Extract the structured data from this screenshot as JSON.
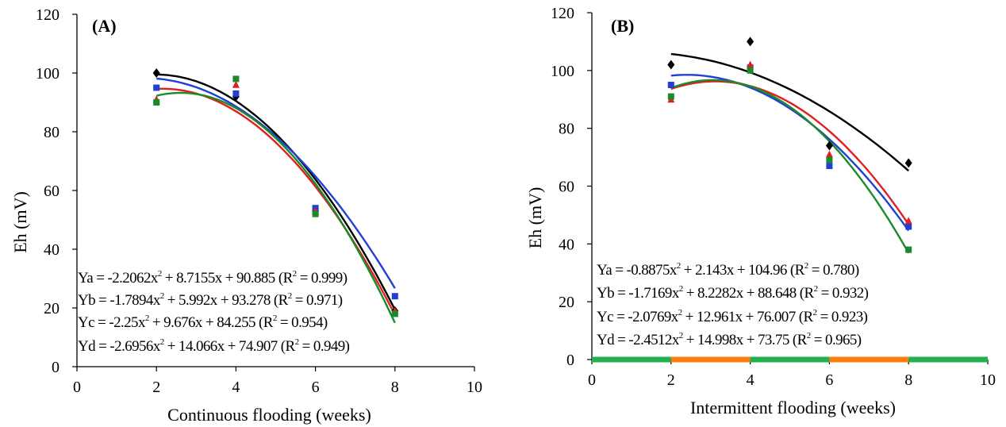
{
  "chart_data": [
    {
      "type": "scatter",
      "panel_label": "(A)",
      "xlabel": "Continuous flooding (weeks)",
      "ylabel": "Eh (mV)",
      "xlim": [
        0,
        10
      ],
      "ylim": [
        0,
        120
      ],
      "xticks": [
        0,
        2,
        4,
        6,
        8,
        10
      ],
      "yticks": [
        0,
        20,
        40,
        60,
        80,
        100,
        120
      ],
      "x": [
        2,
        4,
        6,
        8
      ],
      "series": [
        {
          "key": "a",
          "values": [
            100,
            92,
            53,
            19
          ],
          "coef": [
            -2.2062,
            8.7155,
            90.885
          ],
          "color": "#000000",
          "marker": "diamond",
          "eq": {
            "lead": "Ya = -2.2062x",
            "tail": " + 8.7155x + 90.885 (R",
            "r2": " = 0.999)"
          }
        },
        {
          "key": "b",
          "values": [
            95,
            93,
            54,
            24
          ],
          "coef": [
            -1.7894,
            5.992,
            93.278
          ],
          "color": "#1f3fd6",
          "marker": "square",
          "eq": {
            "lead": "Yb = -1.7894x",
            "tail": " + 5.992x + 93.278 (R",
            "r2": " = 0.971)"
          }
        },
        {
          "key": "c",
          "values": [
            91,
            96,
            53,
            19
          ],
          "coef": [
            -2.25,
            9.676,
            84.255
          ],
          "color": "#e02020",
          "marker": "triangle",
          "eq": {
            "lead": "Yc = -2.25x",
            "tail": " + 9.676x + 84.255 (R",
            "r2": " = 0.954)"
          }
        },
        {
          "key": "d",
          "values": [
            90,
            98,
            52,
            18
          ],
          "coef": [
            -2.6956,
            14.066,
            74.907
          ],
          "color": "#1a8a2a",
          "marker": "square",
          "eq": {
            "lead": "Yd = -2.6956x",
            "tail": " + 14.066x + 74.907 (R",
            "r2": " = 0.949)"
          }
        }
      ]
    },
    {
      "type": "scatter",
      "panel_label": "(B)",
      "xlabel": "Intermittent flooding (weeks)",
      "ylabel": "Eh (mV)",
      "xlim": [
        0,
        10
      ],
      "ylim": [
        0,
        120
      ],
      "xticks": [
        0,
        2,
        4,
        6,
        8,
        10
      ],
      "yticks": [
        0,
        20,
        40,
        60,
        80,
        100,
        120
      ],
      "x": [
        2,
        4,
        6,
        8
      ],
      "series": [
        {
          "key": "a",
          "values": [
            102,
            110,
            74,
            68
          ],
          "coef": [
            -0.8875,
            2.143,
            104.96
          ],
          "color": "#000000",
          "marker": "diamond",
          "eq": {
            "lead": "Ya = -0.8875x",
            "tail": " + 2.143x + 104.96 (R",
            "r2": " = 0.780)"
          }
        },
        {
          "key": "b",
          "values": [
            95,
            101,
            67,
            46
          ],
          "coef": [
            -1.7169,
            8.2282,
            88.648
          ],
          "color": "#1f3fd6",
          "marker": "square",
          "eq": {
            "lead": "Yb = -1.7169x",
            "tail": " + 8.2282x + 88.648 (R",
            "r2": " = 0.932)"
          }
        },
        {
          "key": "c",
          "values": [
            90,
            102,
            71,
            48
          ],
          "coef": [
            -2.0769,
            12.961,
            76.007
          ],
          "color": "#e02020",
          "marker": "triangle",
          "eq": {
            "lead": "Yc = -2.0769x",
            "tail": " + 12.961x + 76.007 (R",
            "r2": " = 0.923)"
          }
        },
        {
          "key": "d",
          "values": [
            91,
            100,
            69,
            38
          ],
          "coef": [
            -2.4512,
            14.998,
            73.75
          ],
          "color": "#1a8a2a",
          "marker": "square",
          "eq": {
            "lead": "Yd = -2.4512x",
            "tail": " + 14.998x + 73.75 (R",
            "r2": " = 0.965)"
          }
        }
      ],
      "flood_schedule": [
        {
          "from": 0,
          "to": 2,
          "state": "flooded",
          "color": "#22b14c"
        },
        {
          "from": 2,
          "to": 4,
          "state": "drained",
          "color": "#ff7f0e"
        },
        {
          "from": 4,
          "to": 6,
          "state": "flooded",
          "color": "#22b14c"
        },
        {
          "from": 6,
          "to": 8,
          "state": "drained",
          "color": "#ff7f0e"
        },
        {
          "from": 8,
          "to": 10,
          "state": "flooded",
          "color": "#22b14c"
        }
      ]
    }
  ]
}
